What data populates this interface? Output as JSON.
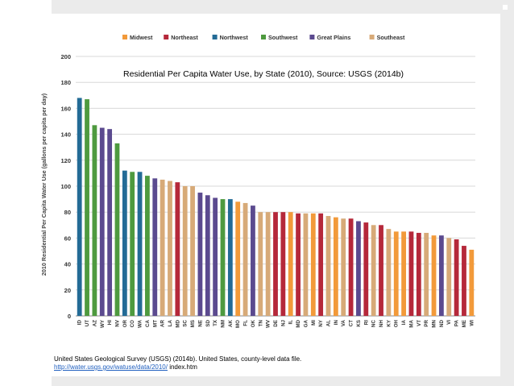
{
  "chart_data": {
    "type": "bar",
    "title": "Residential Per Capita Water Use, by State (2010), Source: USGS (2014b)",
    "ylabel": "2010 Residential Per Capita Water Use (gallons per capita per day)",
    "xlabel": "",
    "ylim": [
      0,
      200
    ],
    "yticks": [
      0,
      20,
      40,
      60,
      80,
      100,
      120,
      140,
      160,
      180,
      200
    ],
    "grid": true,
    "legend_position": "top",
    "legend": [
      {
        "name": "Midwest",
        "color": "#f29a3a"
      },
      {
        "name": "Northeast",
        "color": "#b5283a"
      },
      {
        "name": "Northwest",
        "color": "#236b96"
      },
      {
        "name": "Southwest",
        "color": "#4e9a3f"
      },
      {
        "name": "Great Plains",
        "color": "#5b4a8f"
      },
      {
        "name": "Southeast",
        "color": "#d7aa78"
      }
    ],
    "categories": [
      "ID",
      "UT",
      "AZ",
      "WY",
      "HI",
      "NV",
      "OR",
      "CO",
      "WA",
      "CA",
      "MT",
      "AR",
      "LA",
      "MD",
      "SC",
      "MS",
      "NE",
      "SD",
      "TX",
      "NM",
      "AK",
      "MO",
      "FL",
      "OK",
      "TN",
      "WV",
      "DE",
      "NJ",
      "IL",
      "MD",
      "GA",
      "MI",
      "NY",
      "AL",
      "IN",
      "VA",
      "CT",
      "KS",
      "RI",
      "NC",
      "NH",
      "KY",
      "OH",
      "IA",
      "MA",
      "VT",
      "PR",
      "MN",
      "ND",
      "VI",
      "PA",
      "ME",
      "WI"
    ],
    "values": [
      168,
      167,
      147,
      145,
      144,
      133,
      112,
      111,
      111,
      108,
      106,
      105,
      104,
      103,
      100,
      100,
      95,
      93,
      91,
      90,
      90,
      88,
      87,
      85,
      80,
      80,
      80,
      80,
      80,
      79,
      79,
      79,
      79,
      77,
      76,
      75,
      75,
      73,
      72,
      70,
      70,
      67,
      65,
      65,
      65,
      64,
      64,
      62,
      62,
      60,
      59,
      54,
      51
    ],
    "regions": [
      "Northwest",
      "Southwest",
      "Southwest",
      "Great Plains",
      "Great Plains",
      "Southwest",
      "Northwest",
      "Southwest",
      "Northwest",
      "Southwest",
      "Great Plains",
      "Southeast",
      "Southeast",
      "Northeast",
      "Southeast",
      "Southeast",
      "Great Plains",
      "Great Plains",
      "Great Plains",
      "Southwest",
      "Northwest",
      "Midwest",
      "Southeast",
      "Great Plains",
      "Southeast",
      "Southeast",
      "Northeast",
      "Northeast",
      "Midwest",
      "Northeast",
      "Southeast",
      "Midwest",
      "Northeast",
      "Southeast",
      "Midwest",
      "Southeast",
      "Northeast",
      "Great Plains",
      "Northeast",
      "Southeast",
      "Northeast",
      "Southeast",
      "Midwest",
      "Midwest",
      "Northeast",
      "Northeast",
      "Southeast",
      "Midwest",
      "Great Plains",
      "Southeast",
      "Northeast",
      "Northeast",
      "Midwest"
    ]
  },
  "source": {
    "line1": "United States Geological Survey (USGS) (2014b).  United States, county-level data file.",
    "link": "http://water.usgs.gov/watuse/data/2010/",
    "link_suffix": " index.htm"
  }
}
